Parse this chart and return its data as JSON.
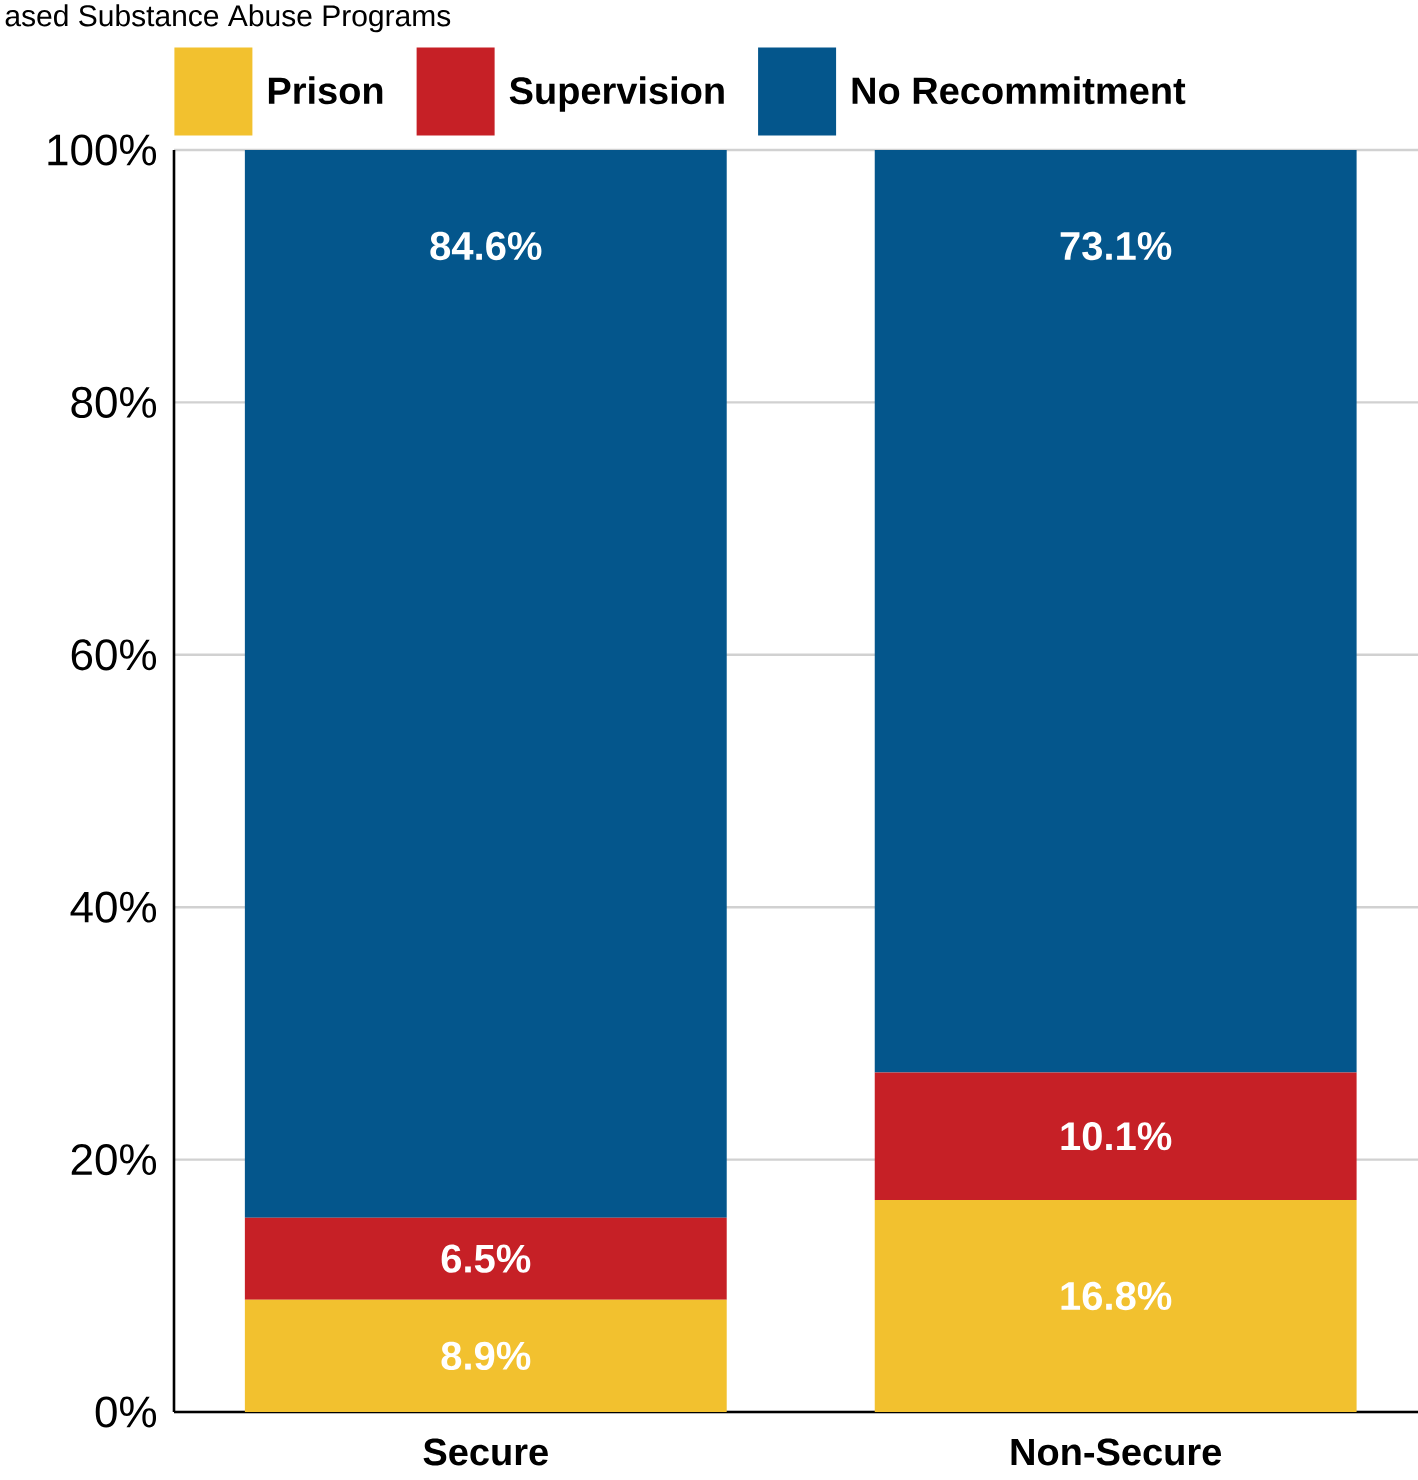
{
  "chart_data": {
    "type": "bar",
    "stacked": true,
    "title": "ased Substance Abuse Programs",
    "categories": [
      "Secure",
      "Non-Secure"
    ],
    "series": [
      {
        "name": "Prison",
        "color": "#f2c12f",
        "values": [
          8.9,
          16.8
        ],
        "value_labels": [
          "8.9%",
          "16.8%"
        ]
      },
      {
        "name": "Supervision",
        "color": "#c62026",
        "values": [
          6.5,
          10.1
        ],
        "value_labels": [
          "6.5%",
          "10.1%"
        ]
      },
      {
        "name": "No Recommitment",
        "color": "#04568c",
        "values": [
          84.6,
          73.1
        ],
        "value_labels": [
          "84.6%",
          "73.1%"
        ]
      }
    ],
    "ylim": [
      0,
      100
    ],
    "yticks": [
      {
        "value": 0,
        "label": "0%"
      },
      {
        "value": 20,
        "label": "20%"
      },
      {
        "value": 40,
        "label": "40%"
      },
      {
        "value": 60,
        "label": "60%"
      },
      {
        "value": 80,
        "label": "80%"
      },
      {
        "value": 100,
        "label": "100%"
      }
    ],
    "grid": "y",
    "legend": "top"
  }
}
